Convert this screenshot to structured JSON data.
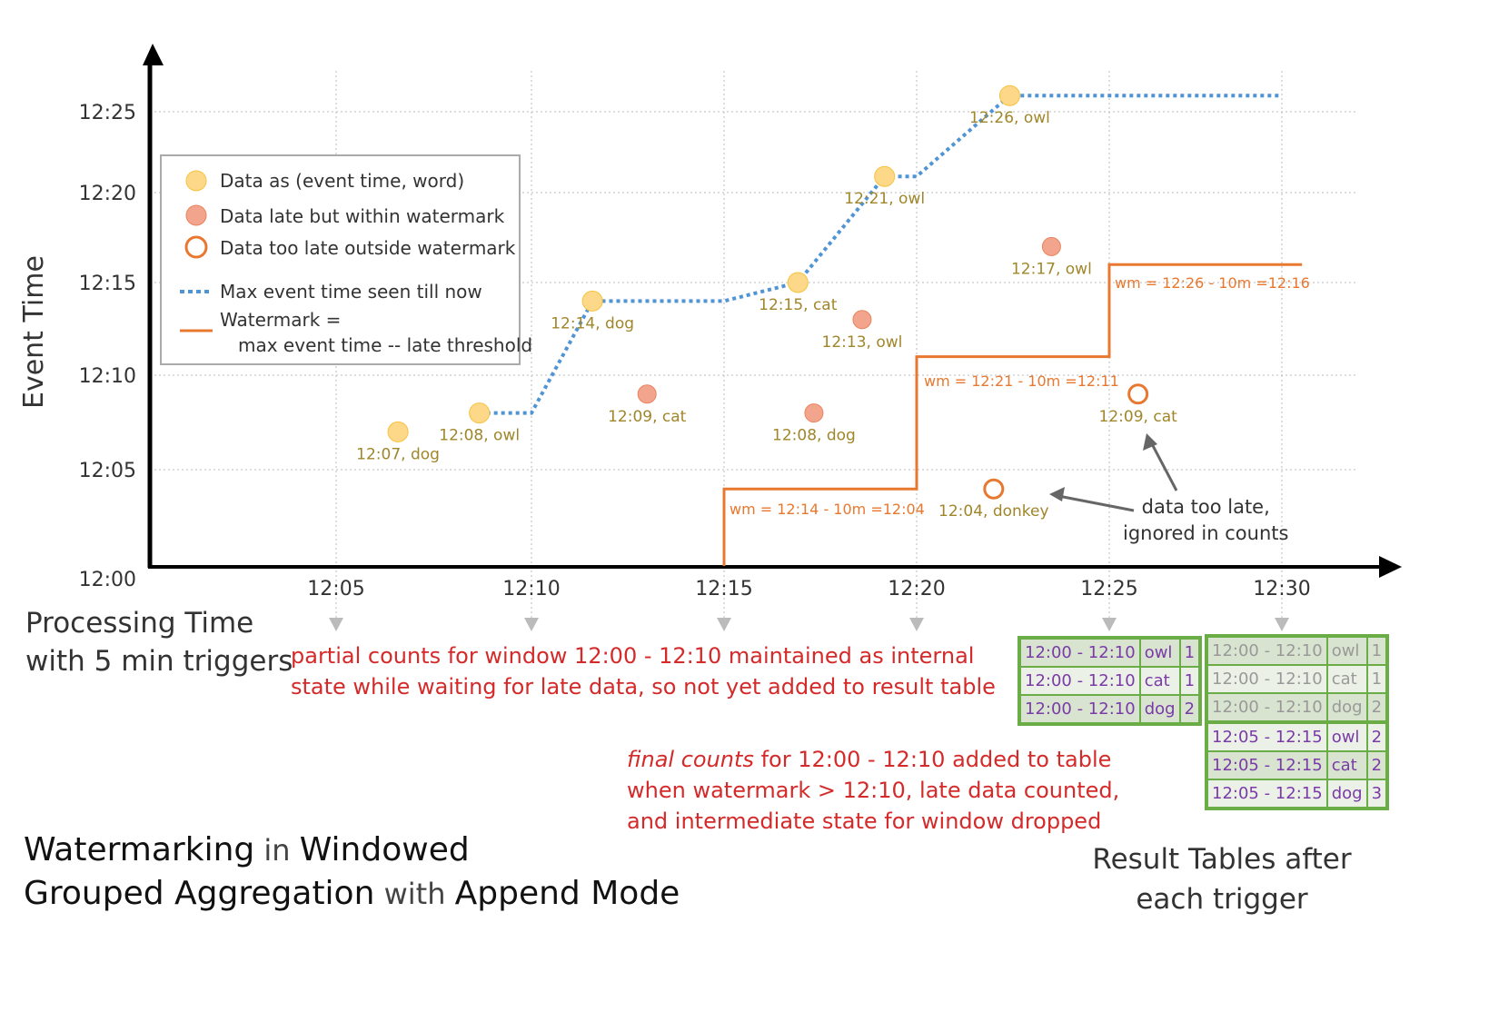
{
  "axes": {
    "y_label": "Event Time",
    "x_label_line1": "Processing Time",
    "x_label_line2": "with 5 min triggers",
    "y_ticks": [
      "12:00",
      "12:05",
      "12:10",
      "12:15",
      "12:20",
      "12:25"
    ],
    "x_ticks": [
      "12:05",
      "12:10",
      "12:15",
      "12:20",
      "12:25",
      "12:30"
    ]
  },
  "legend": {
    "items": [
      "Data as (event time, word)",
      "Data late but within watermark",
      "Data too late outside watermark",
      "Max event time seen till now",
      "Watermark =",
      "max event time -- late threshold"
    ]
  },
  "colors": {
    "on_time": "#fdd888",
    "late": "#f2a58c",
    "too_late": "#e8782f",
    "max_line": "#4f94d4",
    "watermark": "#e8782f",
    "table_border": "#6aac46",
    "annotation": "#d42a2a"
  },
  "points": [
    {
      "label": "12:07, dog",
      "event": "12:07",
      "processing": "12:06:35",
      "kind": "on_time"
    },
    {
      "label": "12:08, owl",
      "event": "12:08",
      "processing": "12:08:40",
      "kind": "on_time"
    },
    {
      "label": "12:14, dog",
      "event": "12:14",
      "processing": "12:11:35",
      "kind": "on_time"
    },
    {
      "label": "12:09, cat",
      "event": "12:09",
      "processing": "12:13:00",
      "kind": "late"
    },
    {
      "label": "12:15, cat",
      "event": "12:15",
      "processing": "12:16:55",
      "kind": "on_time"
    },
    {
      "label": "12:08, dog",
      "event": "12:08",
      "processing": "12:17:20",
      "kind": "late"
    },
    {
      "label": "12:13, owl",
      "event": "12:13",
      "processing": "12:18:35",
      "kind": "late"
    },
    {
      "label": "12:21, owl",
      "event": "12:21",
      "processing": "12:19:10",
      "kind": "on_time"
    },
    {
      "label": "12:04, donkey",
      "event": "12:04",
      "processing": "12:22:00",
      "kind": "too_late"
    },
    {
      "label": "12:26, owl",
      "event": "12:26",
      "processing": "12:22:25",
      "kind": "on_time"
    },
    {
      "label": "12:17, owl",
      "event": "12:17",
      "processing": "12:23:30",
      "kind": "late"
    },
    {
      "label": "12:09, cat",
      "event": "12:09",
      "processing": "12:25:50",
      "kind": "too_late"
    }
  ],
  "watermark_labels": [
    "wm = 12:14 - 10m =12:04",
    "wm = 12:21 - 10m =12:11",
    "wm = 12:26 - 10m =12:16"
  ],
  "annotations": {
    "too_late": [
      "data too late,",
      "ignored in counts"
    ],
    "partial": [
      "partial counts for window 12:00 - 12:10 maintained as internal",
      "state while waiting for late data, so not yet added  to result table"
    ],
    "final_em": "final counts",
    "final_rest": " for 12:00 - 12:10 added to table",
    "final_2": "when watermark > 12:10, late data counted,",
    "final_3": "and intermediate state for window dropped"
  },
  "title": {
    "w1": "Watermarking",
    "w2": " in ",
    "w3": "Windowed",
    "w4": "Grouped Aggregation",
    "w5": " with ",
    "w6": "Append Mode"
  },
  "result_caption": [
    "Result Tables after",
    "each trigger"
  ],
  "table_1225": [
    [
      "12:00 - 12:10",
      "owl",
      "1"
    ],
    [
      "12:00 - 12:10",
      "cat",
      "1"
    ],
    [
      "12:00 - 12:10",
      "dog",
      "2"
    ]
  ],
  "table_1230": [
    [
      "12:00 - 12:10",
      "owl",
      "1"
    ],
    [
      "12:00 - 12:10",
      "cat",
      "1"
    ],
    [
      "12:00 - 12:10",
      "dog",
      "2"
    ],
    [
      "12:05 - 12:15",
      "owl",
      "2"
    ],
    [
      "12:05 - 12:15",
      "cat",
      "2"
    ],
    [
      "12:05 - 12:15",
      "dog",
      "3"
    ]
  ]
}
